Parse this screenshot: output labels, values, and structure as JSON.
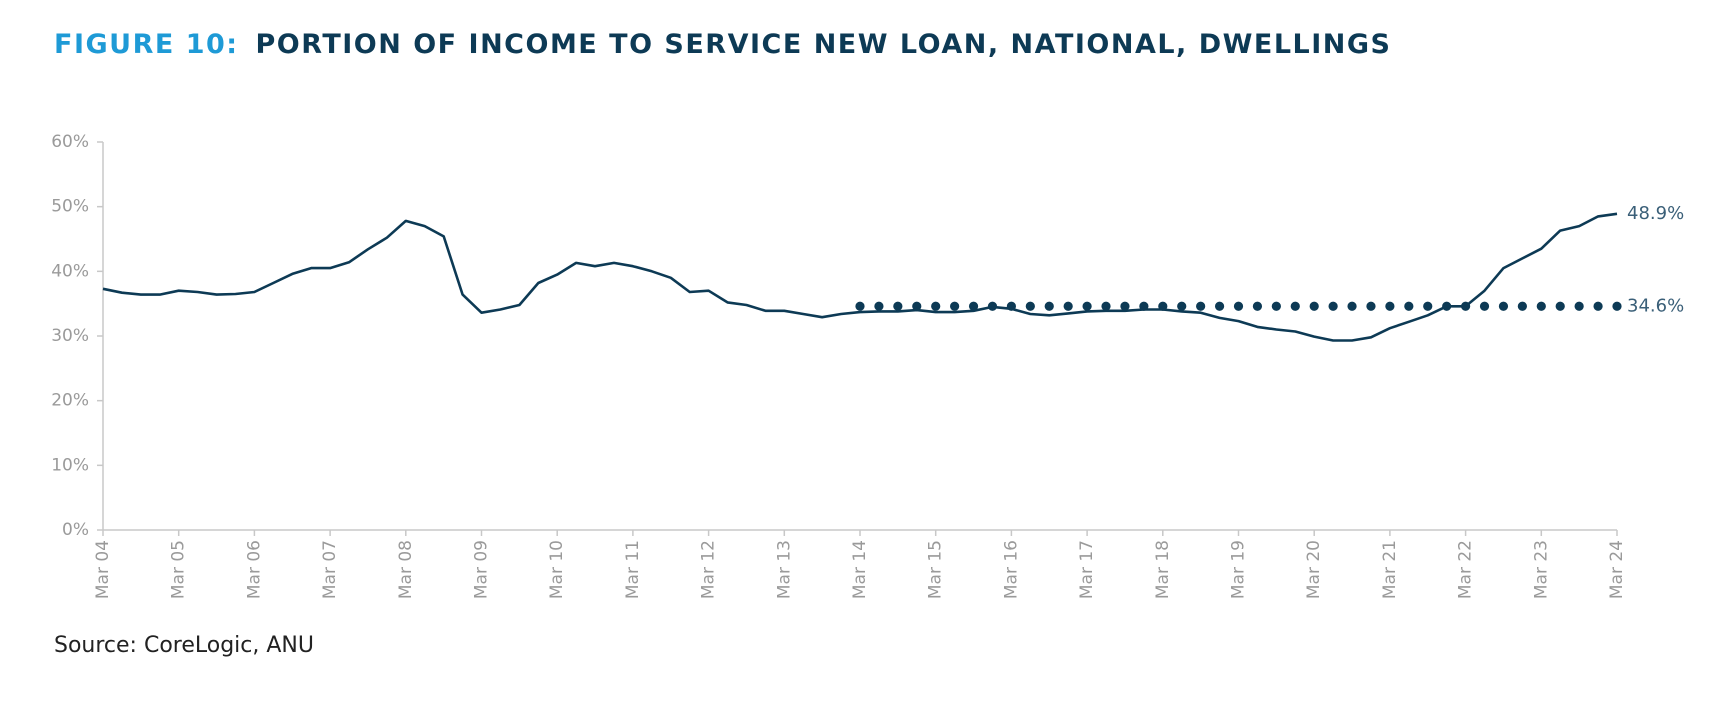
{
  "chart_data": {
    "type": "line",
    "figure_label": "FIGURE 10:",
    "title": "PORTION OF INCOME TO SERVICE NEW LOAN, NATIONAL, DWELLINGS",
    "source": "Source: CoreLogic, ANU",
    "categories": [
      "Mar 04",
      null,
      null,
      null,
      "Mar 05",
      null,
      null,
      null,
      "Mar 06",
      null,
      null,
      null,
      "Mar 07",
      null,
      null,
      null,
      "Mar 08",
      null,
      null,
      null,
      "Mar 09",
      null,
      null,
      null,
      "Mar 10",
      null,
      null,
      null,
      "Mar 11",
      null,
      null,
      null,
      "Mar 12",
      null,
      null,
      null,
      "Mar 13",
      null,
      null,
      null,
      "Mar 14",
      null,
      null,
      null,
      "Mar 15",
      null,
      null,
      null,
      "Mar 16",
      null,
      null,
      null,
      "Mar 17",
      null,
      null,
      null,
      "Mar 18",
      null,
      null,
      null,
      "Mar 19",
      null,
      null,
      null,
      "Mar 20",
      null,
      null,
      null,
      "Mar 21",
      null,
      null,
      null,
      "Mar 22",
      null,
      null,
      null,
      "Mar 23",
      null,
      null,
      null,
      "Mar 24"
    ],
    "series": [
      {
        "style": "solid",
        "color": "#0d3a55",
        "values": [
          37.3,
          36.7,
          36.4,
          36.4,
          37.0,
          36.8,
          36.4,
          36.5,
          36.8,
          38.2,
          39.6,
          40.5,
          40.5,
          41.4,
          43.4,
          45.2,
          47.8,
          47.0,
          45.4,
          36.4,
          33.6,
          34.1,
          34.8,
          38.2,
          39.5,
          41.3,
          40.8,
          41.3,
          40.8,
          40.0,
          39.0,
          36.8,
          37.0,
          35.2,
          34.8,
          33.9,
          33.9,
          33.4,
          32.9,
          33.4,
          33.7,
          33.8,
          33.8,
          34.0,
          33.7,
          33.7,
          33.9,
          34.5,
          34.2,
          33.4,
          33.2,
          33.5,
          33.8,
          33.9,
          33.9,
          34.1,
          34.1,
          33.8,
          33.6,
          32.8,
          32.3,
          31.4,
          31.0,
          30.7,
          29.9,
          29.3,
          29.3,
          29.8,
          31.2,
          32.2,
          33.2,
          34.6,
          34.6,
          37.0,
          40.5,
          42.0,
          43.5,
          46.3,
          47.0,
          48.5,
          48.9
        ],
        "value_labels": [
          null,
          null,
          null,
          null,
          null,
          null,
          null,
          null,
          null,
          null,
          null,
          null,
          null,
          null,
          null,
          null,
          null,
          null,
          null,
          null,
          null,
          null,
          null,
          null,
          null,
          null,
          null,
          null,
          null,
          null,
          null,
          null,
          null,
          null,
          null,
          null,
          null,
          null,
          null,
          null,
          null,
          null,
          null,
          null,
          null,
          null,
          null,
          null,
          null,
          null,
          null,
          null,
          null,
          null,
          null,
          null,
          null,
          null,
          null,
          null,
          null,
          null,
          null,
          null,
          null,
          null,
          null,
          null,
          null,
          null,
          null,
          null,
          null,
          null,
          null,
          null,
          null,
          null,
          null,
          null,
          "48.9%"
        ]
      },
      {
        "style": "dotted",
        "color": "#0d3a55",
        "values": [
          null,
          null,
          null,
          null,
          null,
          null,
          null,
          null,
          null,
          null,
          null,
          null,
          null,
          null,
          null,
          null,
          null,
          null,
          null,
          null,
          null,
          null,
          null,
          null,
          null,
          null,
          null,
          null,
          null,
          null,
          null,
          null,
          null,
          null,
          null,
          null,
          null,
          null,
          null,
          null,
          34.6,
          34.6,
          34.6,
          34.6,
          34.6,
          34.6,
          34.6,
          34.6,
          34.6,
          34.6,
          34.6,
          34.6,
          34.6,
          34.6,
          34.6,
          34.6,
          34.6,
          34.6,
          34.6,
          34.6,
          34.6,
          34.6,
          34.6,
          34.6,
          34.6,
          34.6,
          34.6,
          34.6,
          34.6,
          34.6,
          34.6,
          34.6,
          34.6,
          34.6,
          34.6,
          34.6,
          34.6,
          34.6,
          34.6,
          34.6,
          34.6
        ],
        "value_labels": [
          null,
          null,
          null,
          null,
          null,
          null,
          null,
          null,
          null,
          null,
          null,
          null,
          null,
          null,
          null,
          null,
          null,
          null,
          null,
          null,
          null,
          null,
          null,
          null,
          null,
          null,
          null,
          null,
          null,
          null,
          null,
          null,
          null,
          null,
          null,
          null,
          null,
          null,
          null,
          null,
          null,
          null,
          null,
          null,
          null,
          null,
          null,
          null,
          null,
          null,
          null,
          null,
          null,
          null,
          null,
          null,
          null,
          null,
          null,
          null,
          null,
          null,
          null,
          null,
          null,
          null,
          null,
          null,
          null,
          null,
          null,
          null,
          null,
          null,
          null,
          null,
          null,
          null,
          null,
          null,
          "34.6%"
        ]
      }
    ],
    "ylim": [
      0,
      60
    ],
    "yticks": [
      {
        "value": 0,
        "label": "0%"
      },
      {
        "value": 10,
        "label": "10%"
      },
      {
        "value": 20,
        "label": "20%"
      },
      {
        "value": 30,
        "label": "30%"
      },
      {
        "value": 40,
        "label": "40%"
      },
      {
        "value": 50,
        "label": "50%"
      },
      {
        "value": 60,
        "label": "60%"
      }
    ],
    "grid": false
  }
}
